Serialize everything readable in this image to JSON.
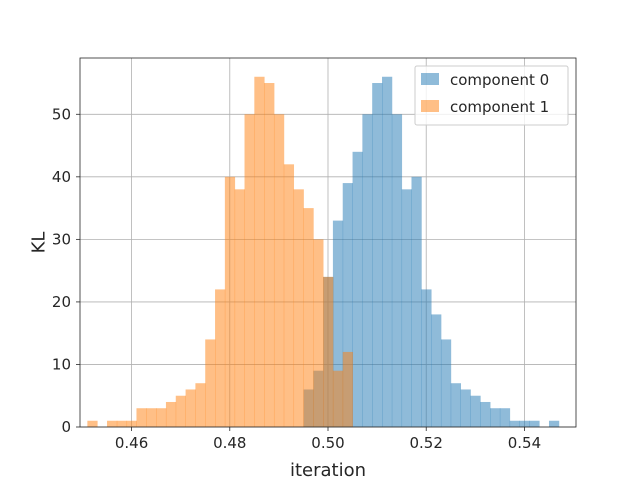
{
  "chart_data": {
    "type": "histogram",
    "title": "",
    "xlabel": "iteration",
    "ylabel": "KL",
    "xlim": [
      0.4495,
      0.5505
    ],
    "ylim": [
      0,
      59
    ],
    "x_ticks": [
      0.46,
      0.48,
      0.5,
      0.52,
      0.54
    ],
    "x_tick_labels": [
      "0.46",
      "0.48",
      "0.50",
      "0.52",
      "0.54"
    ],
    "y_ticks": [
      0,
      10,
      20,
      30,
      40,
      50
    ],
    "y_tick_labels": [
      "0",
      "10",
      "20",
      "30",
      "40",
      "50"
    ],
    "grid": true,
    "legend_position": "top-right",
    "bin_width": 0.002,
    "series": [
      {
        "name": "component 0",
        "color": "#1f77b4",
        "alpha": 0.5,
        "bins": [
          [
            0.495,
            6
          ],
          [
            0.497,
            9
          ],
          [
            0.499,
            24
          ],
          [
            0.501,
            33
          ],
          [
            0.503,
            39
          ],
          [
            0.505,
            44
          ],
          [
            0.507,
            50
          ],
          [
            0.509,
            55
          ],
          [
            0.511,
            56
          ],
          [
            0.513,
            50
          ],
          [
            0.515,
            38
          ],
          [
            0.517,
            40
          ],
          [
            0.519,
            22
          ],
          [
            0.521,
            18
          ],
          [
            0.523,
            14
          ],
          [
            0.525,
            7
          ],
          [
            0.527,
            6
          ],
          [
            0.529,
            5
          ],
          [
            0.531,
            4
          ],
          [
            0.533,
            3
          ],
          [
            0.535,
            3
          ],
          [
            0.537,
            1
          ],
          [
            0.539,
            1
          ],
          [
            0.541,
            1
          ],
          [
            0.545,
            1
          ]
        ]
      },
      {
        "name": "component 1",
        "color": "#ff7f0e",
        "alpha": 0.5,
        "bins": [
          [
            0.451,
            1
          ],
          [
            0.455,
            1
          ],
          [
            0.457,
            1
          ],
          [
            0.459,
            1
          ],
          [
            0.461,
            3
          ],
          [
            0.463,
            3
          ],
          [
            0.465,
            3
          ],
          [
            0.467,
            4
          ],
          [
            0.469,
            5
          ],
          [
            0.471,
            6
          ],
          [
            0.473,
            7
          ],
          [
            0.475,
            14
          ],
          [
            0.477,
            22
          ],
          [
            0.479,
            40
          ],
          [
            0.481,
            38
          ],
          [
            0.483,
            50
          ],
          [
            0.485,
            56
          ],
          [
            0.487,
            55
          ],
          [
            0.489,
            50
          ],
          [
            0.491,
            42
          ],
          [
            0.493,
            38
          ],
          [
            0.495,
            35
          ],
          [
            0.497,
            30
          ],
          [
            0.499,
            24
          ],
          [
            0.501,
            9
          ],
          [
            0.503,
            12
          ]
        ]
      }
    ]
  }
}
